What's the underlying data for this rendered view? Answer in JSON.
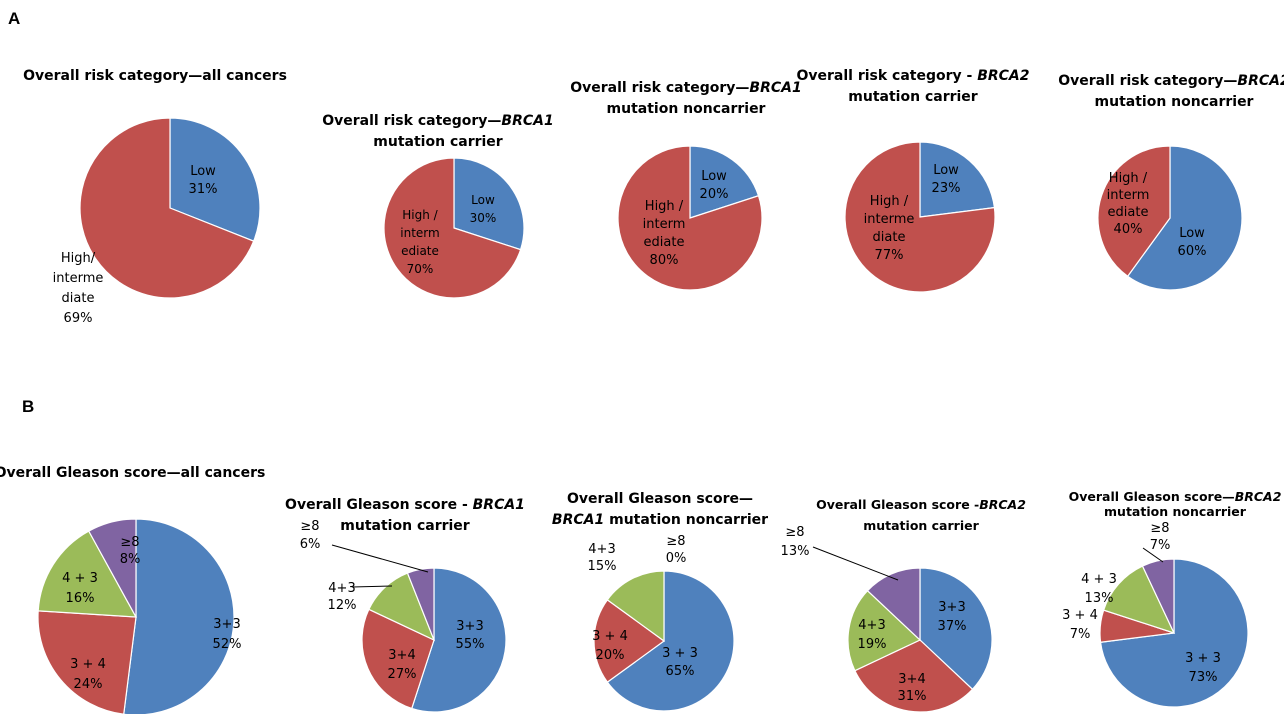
{
  "panels": {
    "a": "A",
    "b": "B"
  },
  "colors": {
    "blue": "#4f81bd",
    "red": "#c0504d",
    "green": "#9bbb59",
    "purple": "#8064a2"
  },
  "chart_data": [
    {
      "type": "pie",
      "panel": "A",
      "title": [
        "Overall risk category—all cancers"
      ],
      "slices": [
        {
          "name": "Low",
          "value": 31,
          "color": "blue",
          "label": [
            "Low",
            "31%"
          ]
        },
        {
          "name": "High/intermediate",
          "value": 69,
          "color": "red",
          "label": [
            "High/",
            "interme",
            "diate",
            "69%"
          ]
        }
      ]
    },
    {
      "type": "pie",
      "panel": "A",
      "title": [
        "Overall risk category—BRCA1",
        "mutation carrier"
      ],
      "slices": [
        {
          "name": "Low",
          "value": 30,
          "color": "blue",
          "label": [
            "Low",
            "30%"
          ]
        },
        {
          "name": "High/intermediate",
          "value": 70,
          "color": "red",
          "label": [
            "High /",
            "interm",
            "ediate",
            "70%"
          ]
        }
      ]
    },
    {
      "type": "pie",
      "panel": "A",
      "title": [
        "Overall risk category—BRCA1",
        "mutation noncarrier"
      ],
      "slices": [
        {
          "name": "Low",
          "value": 20,
          "color": "blue",
          "label": [
            "Low",
            "20%"
          ]
        },
        {
          "name": "High/intermediate",
          "value": 80,
          "color": "red",
          "label": [
            "High /",
            "interm",
            "ediate",
            "80%"
          ]
        }
      ]
    },
    {
      "type": "pie",
      "panel": "A",
      "title": [
        "Overall risk category - BRCA2",
        "mutation carrier"
      ],
      "slices": [
        {
          "name": "Low",
          "value": 23,
          "color": "blue",
          "label": [
            "Low",
            "23%"
          ]
        },
        {
          "name": "High/intermediate",
          "value": 77,
          "color": "red",
          "label": [
            "High /",
            "interme",
            "diate",
            "77%"
          ]
        }
      ]
    },
    {
      "type": "pie",
      "panel": "A",
      "title": [
        "Overall risk category—BRCA2",
        "mutation noncarrier"
      ],
      "slices": [
        {
          "name": "Low",
          "value": 60,
          "color": "blue",
          "label": [
            "Low",
            "60%"
          ]
        },
        {
          "name": "High/intermediate",
          "value": 40,
          "color": "red",
          "label": [
            "High /",
            "interm",
            "ediate",
            "40%"
          ]
        }
      ]
    },
    {
      "type": "pie",
      "panel": "B",
      "title": [
        "Overall Gleason score—all cancers"
      ],
      "slices": [
        {
          "name": "3+3",
          "value": 52,
          "color": "blue",
          "label": [
            "3+3",
            "52%"
          ]
        },
        {
          "name": "3 + 4",
          "value": 24,
          "color": "red",
          "label": [
            "3 + 4",
            "24%"
          ]
        },
        {
          "name": "4 + 3",
          "value": 16,
          "color": "green",
          "label": [
            "4 + 3",
            "16%"
          ]
        },
        {
          "name": "≥8",
          "value": 8,
          "color": "purple",
          "label": [
            "≥8",
            "8%"
          ]
        }
      ]
    },
    {
      "type": "pie",
      "panel": "B",
      "title": [
        "Overall Gleason score - BRCA1",
        "mutation carrier"
      ],
      "slices": [
        {
          "name": "3+3",
          "value": 55,
          "color": "blue",
          "label": [
            "3+3",
            "55%"
          ]
        },
        {
          "name": "3+4",
          "value": 27,
          "color": "red",
          "label": [
            "3+4",
            "27%"
          ]
        },
        {
          "name": "4+3",
          "value": 12,
          "color": "green",
          "label": [
            "4+3",
            "12%"
          ]
        },
        {
          "name": "≥8",
          "value": 6,
          "color": "purple",
          "label": [
            "≥8",
            "6%"
          ]
        }
      ]
    },
    {
      "type": "pie",
      "panel": "B",
      "title": [
        "Overall Gleason score—",
        "BRCA1 mutation noncarrier"
      ],
      "slices": [
        {
          "name": "3 + 3",
          "value": 65,
          "color": "blue",
          "label": [
            "3 + 3",
            "65%"
          ]
        },
        {
          "name": "3 + 4",
          "value": 20,
          "color": "red",
          "label": [
            "3 + 4",
            "20%"
          ]
        },
        {
          "name": "4+3",
          "value": 15,
          "color": "green",
          "label": [
            "4+3",
            "15%"
          ]
        },
        {
          "name": "≥8",
          "value": 0,
          "color": "purple",
          "label": [
            "≥8",
            "0%"
          ]
        }
      ]
    },
    {
      "type": "pie",
      "panel": "B",
      "title": [
        "Overall Gleason score -BRCA2",
        "mutation carrier"
      ],
      "slices": [
        {
          "name": "3+3",
          "value": 37,
          "color": "blue",
          "label": [
            "3+3",
            "37%"
          ]
        },
        {
          "name": "3+4",
          "value": 31,
          "color": "red",
          "label": [
            "3+4",
            "31%"
          ]
        },
        {
          "name": "4+3",
          "value": 19,
          "color": "green",
          "label": [
            "4+3",
            "19%"
          ]
        },
        {
          "name": "≥8",
          "value": 13,
          "color": "purple",
          "label": [
            "≥8",
            "13%"
          ]
        }
      ]
    },
    {
      "type": "pie",
      "panel": "B",
      "title": [
        "Overall Gleason score—BRCA2",
        "mutation noncarrier"
      ],
      "slices": [
        {
          "name": "3 + 3",
          "value": 73,
          "color": "blue",
          "label": [
            "3 + 3",
            "73%"
          ]
        },
        {
          "name": "3 + 4",
          "value": 7,
          "color": "red",
          "label": [
            "3 + 4",
            "7%"
          ]
        },
        {
          "name": "4 + 3",
          "value": 13,
          "color": "green",
          "label": [
            "4 + 3",
            "13%"
          ]
        },
        {
          "name": "≥8",
          "value": 7,
          "color": "purple",
          "label": [
            "≥8",
            "7%"
          ]
        }
      ]
    }
  ]
}
